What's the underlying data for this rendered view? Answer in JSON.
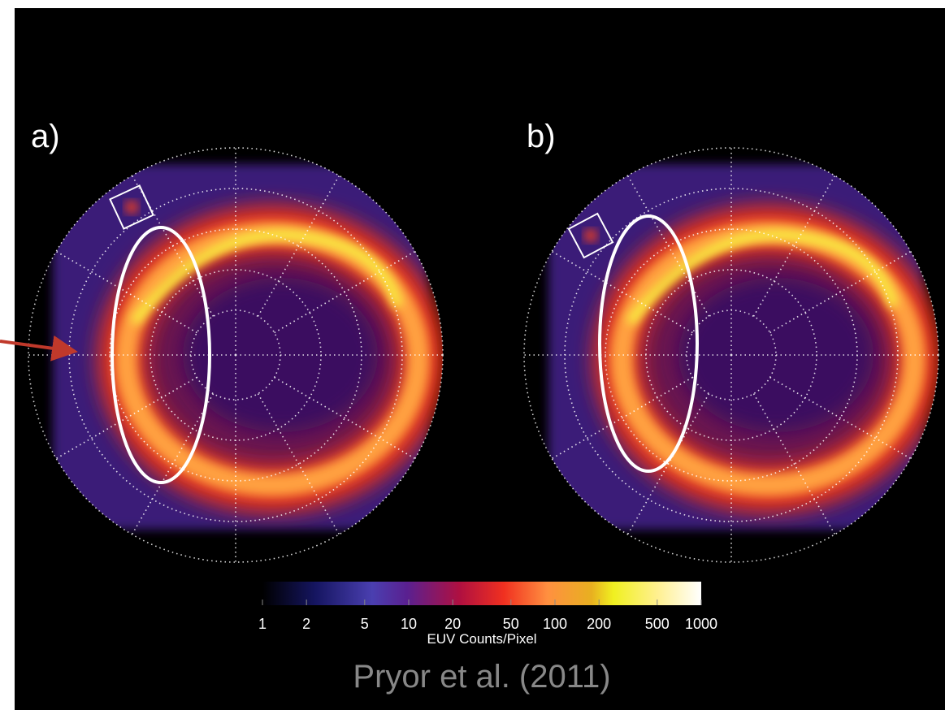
{
  "panels": [
    {
      "label": "a)"
    },
    {
      "label": "b)"
    }
  ],
  "colorbar": {
    "range": [
      1,
      1000
    ],
    "scale": "log",
    "ticks": [
      1,
      2,
      5,
      10,
      20,
      50,
      100,
      200,
      500,
      1000
    ],
    "label": "EUV Counts/Pixel"
  },
  "credit": "Pryor et al. (2011)"
}
